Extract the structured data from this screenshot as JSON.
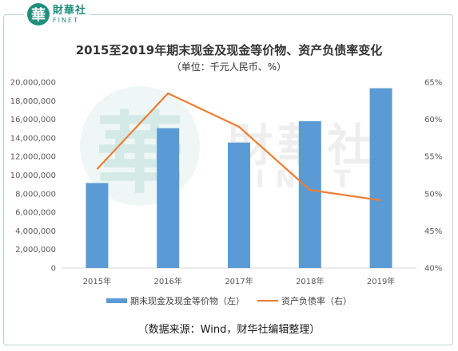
{
  "brand": {
    "seal_char": "華",
    "name_cn": "財華社",
    "name_en": "FINET"
  },
  "watermark": {
    "seal_char": "華",
    "text_cn": "財華社",
    "text_en": "FINET"
  },
  "source_note": "（数据来源：Wind，财华社编辑整理）",
  "colors": {
    "bar": "#5b9bd5",
    "line": "#ed7d31",
    "brand": "#1f8f7c"
  },
  "chart_data": {
    "type": "bar",
    "title": "2015至2019年期末现金及现金等价物、资产负债率变化",
    "subtitle": "（单位：千元人民币、%）",
    "categories": [
      "2015年",
      "2016年",
      "2017年",
      "2018年",
      "2019年"
    ],
    "series": [
      {
        "name": "期末现金及现金等价物（左）",
        "type": "bar",
        "axis": "left",
        "values": [
          9150000,
          15050000,
          13500000,
          15800000,
          19350000
        ]
      },
      {
        "name": "资产负债率（右）",
        "type": "line",
        "axis": "right",
        "values": [
          53.3,
          63.5,
          59.0,
          50.5,
          49.1
        ]
      }
    ],
    "y_left": {
      "min": 0,
      "max": 20000000,
      "step": 2000000,
      "ticks": [
        "0",
        "2,000,000",
        "4,000,000",
        "6,000,000",
        "8,000,000",
        "10,000,000",
        "12,000,000",
        "14,000,000",
        "16,000,000",
        "18,000,000",
        "20,000,000"
      ]
    },
    "y_right": {
      "min": 40,
      "max": 65,
      "step": 5,
      "ticks": [
        "40%",
        "45%",
        "50%",
        "55%",
        "60%",
        "65%"
      ]
    },
    "grid": false,
    "legend_position": "bottom"
  }
}
